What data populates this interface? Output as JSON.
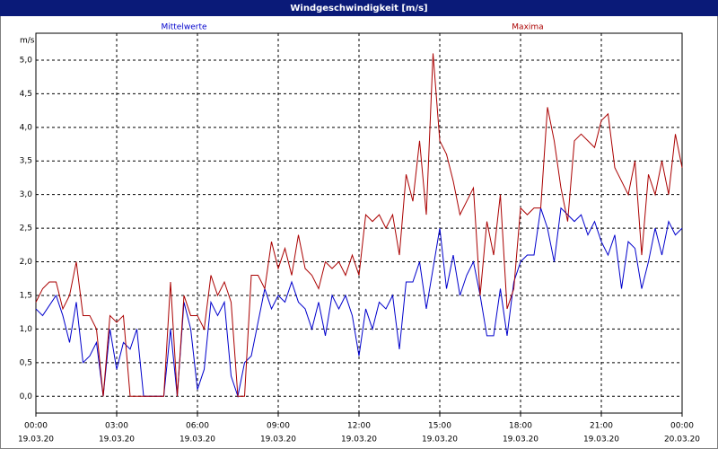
{
  "chart_data": {
    "type": "line",
    "title": "Windgeschwindigkeit [m/s]",
    "y_label": "m/s",
    "x": [
      0,
      0.25,
      0.5,
      0.75,
      1,
      1.25,
      1.5,
      1.75,
      2,
      2.25,
      2.5,
      2.75,
      3,
      3.25,
      3.5,
      3.75,
      4,
      4.25,
      4.5,
      4.75,
      5,
      5.25,
      5.5,
      5.75,
      6,
      6.25,
      6.5,
      6.75,
      7,
      7.25,
      7.5,
      7.75,
      8,
      8.25,
      8.5,
      8.75,
      9,
      9.25,
      9.5,
      9.75,
      10,
      10.25,
      10.5,
      10.75,
      11,
      11.25,
      11.5,
      11.75,
      12,
      12.25,
      12.5,
      12.75,
      13,
      13.25,
      13.5,
      13.75,
      14,
      14.25,
      14.5,
      14.75,
      15,
      15.25,
      15.5,
      15.75,
      16,
      16.25,
      16.5,
      16.75,
      17,
      17.25,
      17.5,
      17.75,
      18,
      18.25,
      18.5,
      18.75,
      19,
      19.25,
      19.5,
      19.75,
      20,
      20.25,
      20.5,
      20.75,
      21,
      21.25,
      21.5,
      21.75,
      22,
      22.25,
      22.5,
      22.75,
      23,
      23.25,
      23.5,
      23.75,
      24
    ],
    "series": [
      {
        "name": "Mittelwerte",
        "color": "#0000cc",
        "values": [
          1.3,
          1.2,
          1.35,
          1.5,
          1.2,
          0.8,
          1.4,
          0.5,
          0.6,
          0.8,
          0.0,
          1.0,
          0.4,
          0.8,
          0.7,
          1.0,
          0.0,
          0.0,
          0.0,
          0.0,
          1.0,
          0.0,
          1.4,
          1.0,
          0.1,
          0.4,
          1.4,
          1.2,
          1.4,
          0.3,
          0.0,
          0.5,
          0.6,
          1.1,
          1.6,
          1.3,
          1.5,
          1.4,
          1.7,
          1.4,
          1.3,
          1.0,
          1.4,
          0.9,
          1.5,
          1.3,
          1.5,
          1.2,
          0.6,
          1.3,
          1.0,
          1.4,
          1.3,
          1.5,
          0.7,
          1.7,
          1.7,
          2.0,
          1.3,
          1.9,
          2.5,
          1.6,
          2.1,
          1.5,
          1.8,
          2.0,
          1.5,
          0.9,
          0.9,
          1.6,
          0.9,
          1.7,
          2.0,
          2.1,
          2.1,
          2.8,
          2.5,
          2.0,
          2.8,
          2.7,
          2.6,
          2.7,
          2.4,
          2.6,
          2.3,
          2.1,
          2.4,
          1.6,
          2.3,
          2.2,
          1.6,
          2.0,
          2.5,
          2.1,
          2.6,
          2.4,
          2.5
        ]
      },
      {
        "name": "Maxima",
        "color": "#aa0000",
        "values": [
          1.4,
          1.6,
          1.7,
          1.7,
          1.3,
          1.5,
          2.0,
          1.2,
          1.2,
          1.0,
          0.0,
          1.2,
          1.1,
          1.2,
          0.0,
          0.0,
          0.0,
          0.0,
          0.0,
          0.0,
          1.7,
          0.0,
          1.5,
          1.2,
          1.2,
          1.0,
          1.8,
          1.5,
          1.7,
          1.4,
          0.0,
          0.0,
          1.8,
          1.8,
          1.6,
          2.3,
          1.9,
          2.2,
          1.8,
          2.4,
          1.9,
          1.8,
          1.6,
          2.0,
          1.9,
          2.0,
          1.8,
          2.1,
          1.8,
          2.7,
          2.6,
          2.7,
          2.5,
          2.7,
          2.1,
          3.3,
          2.9,
          3.8,
          2.7,
          5.1,
          3.8,
          3.6,
          3.2,
          2.7,
          2.9,
          3.1,
          1.5,
          2.6,
          2.1,
          3.0,
          1.3,
          1.6,
          2.8,
          2.7,
          2.8,
          2.8,
          4.3,
          3.8,
          3.1,
          2.6,
          3.8,
          3.9,
          3.8,
          3.7,
          4.1,
          4.2,
          3.4,
          3.2,
          3.0,
          3.5,
          2.1,
          3.3,
          3.0,
          3.5,
          3.0,
          3.9,
          3.4
        ]
      }
    ],
    "xlim": [
      0,
      24
    ],
    "xticks": [
      {
        "value": 0,
        "label": "00:00"
      },
      {
        "value": 3,
        "label": "03:00"
      },
      {
        "value": 6,
        "label": "06:00"
      },
      {
        "value": 9,
        "label": "09:00"
      },
      {
        "value": 12,
        "label": "12:00"
      },
      {
        "value": 15,
        "label": "15:00"
      },
      {
        "value": 18,
        "label": "18:00"
      },
      {
        "value": 21,
        "label": "21:00"
      },
      {
        "value": 24,
        "label": "00:00"
      }
    ],
    "xtick_dates": [
      "19.03.20",
      "19.03.20",
      "19.03.20",
      "19.03.20",
      "19.03.20",
      "19.03.20",
      "19.03.20",
      "19.03.20",
      "20.03.20"
    ],
    "ylim": [
      -0.25,
      5.4
    ],
    "yticks": [
      {
        "value": 0,
        "label": "0,0"
      },
      {
        "value": 0.5,
        "label": "0,5"
      },
      {
        "value": 1,
        "label": "1,0"
      },
      {
        "value": 1.5,
        "label": "1,5"
      },
      {
        "value": 2,
        "label": "2,0"
      },
      {
        "value": 2.5,
        "label": "2,5"
      },
      {
        "value": 3,
        "label": "3,0"
      },
      {
        "value": 3.5,
        "label": "3,5"
      },
      {
        "value": 4,
        "label": "4,0"
      },
      {
        "value": 4.5,
        "label": "4,5"
      },
      {
        "value": 5,
        "label": "5,0"
      }
    ],
    "grid": true
  }
}
